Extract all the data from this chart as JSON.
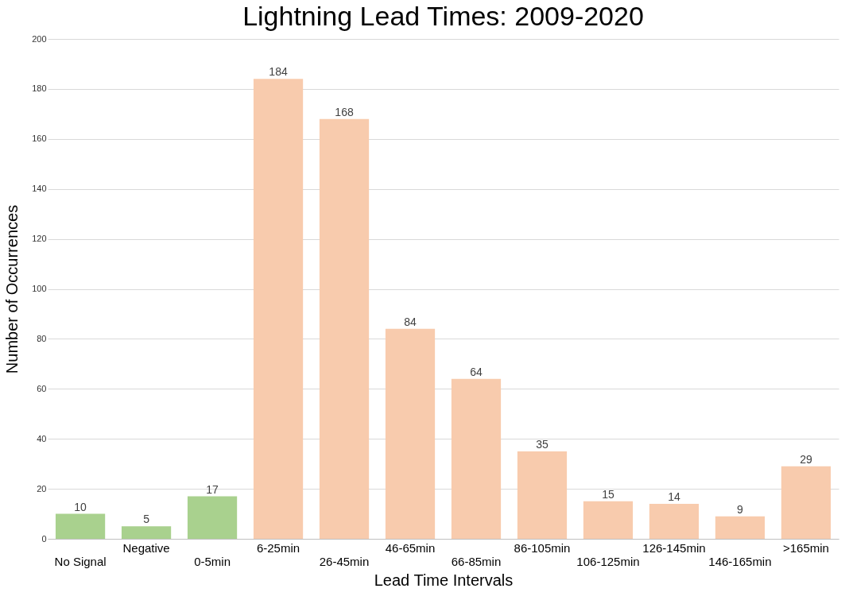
{
  "chart_data": {
    "type": "bar",
    "title": "Lightning Lead Times: 2009-2020",
    "xlabel": "Lead Time Intervals",
    "ylabel": "Number of Occurrences",
    "categories": [
      "No Signal",
      "Negative",
      "0-5min",
      "6-25min",
      "26-45min",
      "46-65min",
      "66-85min",
      "86-105min",
      "106-125min",
      "126-145min",
      "146-165min",
      ">165min"
    ],
    "values": [
      10,
      5,
      17,
      184,
      168,
      84,
      64,
      35,
      15,
      14,
      9,
      29
    ],
    "colors": [
      "#a9d18e",
      "#a9d18e",
      "#a9d18e",
      "#f8cbad",
      "#f8cbad",
      "#f8cbad",
      "#f8cbad",
      "#f8cbad",
      "#f8cbad",
      "#f8cbad",
      "#f8cbad",
      "#f8cbad"
    ],
    "ylim": [
      0,
      200
    ],
    "yticks": [
      0,
      20,
      40,
      60,
      80,
      100,
      120,
      140,
      160,
      180,
      200
    ],
    "grid": "y",
    "data_labels": true
  }
}
